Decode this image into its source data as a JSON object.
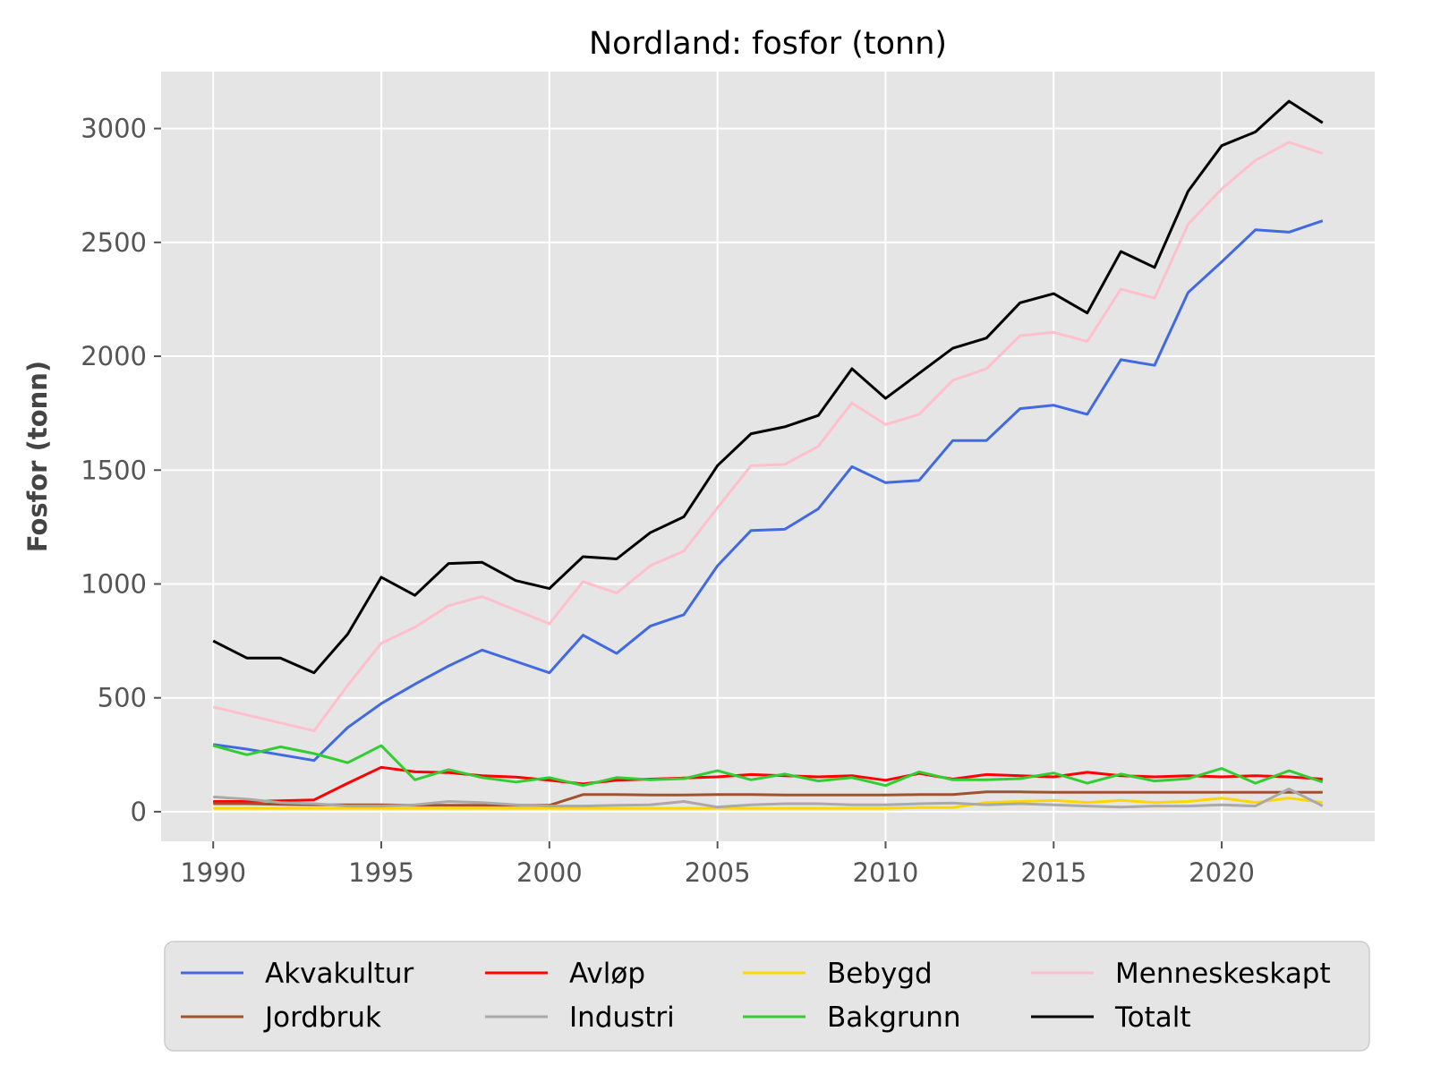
{
  "chart_data": {
    "type": "line",
    "title": "Nordland: fosfor (tonn)",
    "xlabel": "",
    "ylabel": "Fosfor (tonn)",
    "xlim": [
      1988.45,
      2024.55
    ],
    "ylim": [
      -130,
      3250
    ],
    "xticks": [
      1990,
      1995,
      2000,
      2005,
      2010,
      2015,
      2020
    ],
    "yticks": [
      0,
      500,
      1000,
      1500,
      2000,
      2500,
      3000
    ],
    "grid": true,
    "legend_position": "bottom",
    "x": [
      1990,
      1991,
      1992,
      1993,
      1994,
      1995,
      1996,
      1997,
      1998,
      1999,
      2000,
      2001,
      2002,
      2003,
      2004,
      2005,
      2006,
      2007,
      2008,
      2009,
      2010,
      2011,
      2012,
      2013,
      2014,
      2015,
      2016,
      2017,
      2018,
      2019,
      2020,
      2021,
      2022,
      2023
    ],
    "series": [
      {
        "name": "Akvakultur",
        "color": "#4169e1",
        "values": [
          295,
          275,
          250,
          225,
          370,
          475,
          560,
          640,
          710,
          660,
          610,
          775,
          695,
          815,
          865,
          1080,
          1235,
          1240,
          1330,
          1515,
          1445,
          1455,
          1630,
          1630,
          1770,
          1785,
          1745,
          1985,
          1960,
          2280,
          2415,
          2555,
          2545,
          2595
        ]
      },
      {
        "name": "Avløp",
        "color": "#ff0000",
        "values": [
          45,
          45,
          48,
          52,
          125,
          195,
          175,
          172,
          158,
          152,
          138,
          122,
          138,
          143,
          148,
          153,
          163,
          158,
          153,
          158,
          138,
          168,
          143,
          163,
          158,
          153,
          173,
          158,
          153,
          158,
          153,
          158,
          153,
          143
        ]
      },
      {
        "name": "Bebygd",
        "color": "#ffd700",
        "values": [
          15,
          15,
          15,
          15,
          15,
          15,
          15,
          15,
          15,
          15,
          15,
          15,
          15,
          15,
          15,
          15,
          15,
          15,
          15,
          15,
          15,
          18,
          18,
          40,
          45,
          50,
          40,
          50,
          40,
          45,
          60,
          40,
          60,
          40
        ]
      },
      {
        "name": "Menneskeskapt",
        "color": "#ffc0cb",
        "values": [
          460,
          425,
          390,
          355,
          555,
          740,
          810,
          905,
          945,
          885,
          825,
          1010,
          960,
          1080,
          1145,
          1335,
          1520,
          1525,
          1605,
          1795,
          1700,
          1745,
          1895,
          1945,
          2090,
          2105,
          2065,
          2295,
          2255,
          2580,
          2735,
          2860,
          2940,
          2890
        ]
      },
      {
        "name": "Jordbruk",
        "color": "#a0522d",
        "values": [
          35,
          35,
          32,
          30,
          30,
          30,
          28,
          28,
          28,
          28,
          28,
          75,
          75,
          73,
          73,
          75,
          75,
          73,
          73,
          73,
          73,
          75,
          75,
          87,
          87,
          85,
          85,
          85,
          85,
          85,
          85,
          85,
          85,
          85
        ]
      },
      {
        "name": "Industri",
        "color": "#a9a9a9",
        "values": [
          65,
          55,
          40,
          35,
          25,
          25,
          30,
          45,
          40,
          30,
          25,
          25,
          28,
          30,
          45,
          20,
          30,
          35,
          35,
          30,
          30,
          35,
          38,
          30,
          35,
          30,
          25,
          20,
          25,
          25,
          30,
          25,
          100,
          25
        ]
      },
      {
        "name": "Bakgrunn",
        "color": "#32cd32",
        "values": [
          290,
          250,
          285,
          255,
          215,
          290,
          140,
          185,
          150,
          130,
          150,
          115,
          150,
          140,
          145,
          180,
          140,
          165,
          135,
          150,
          115,
          175,
          140,
          140,
          145,
          170,
          125,
          165,
          135,
          145,
          190,
          125,
          180,
          130
        ]
      },
      {
        "name": "Totalt",
        "color": "#000000",
        "values": [
          750,
          675,
          675,
          610,
          780,
          1030,
          950,
          1090,
          1095,
          1015,
          980,
          1120,
          1110,
          1225,
          1295,
          1520,
          1660,
          1690,
          1740,
          1945,
          1815,
          1925,
          2035,
          2080,
          2235,
          2275,
          2190,
          2460,
          2390,
          2725,
          2925,
          2985,
          3120,
          3025
        ]
      }
    ]
  }
}
